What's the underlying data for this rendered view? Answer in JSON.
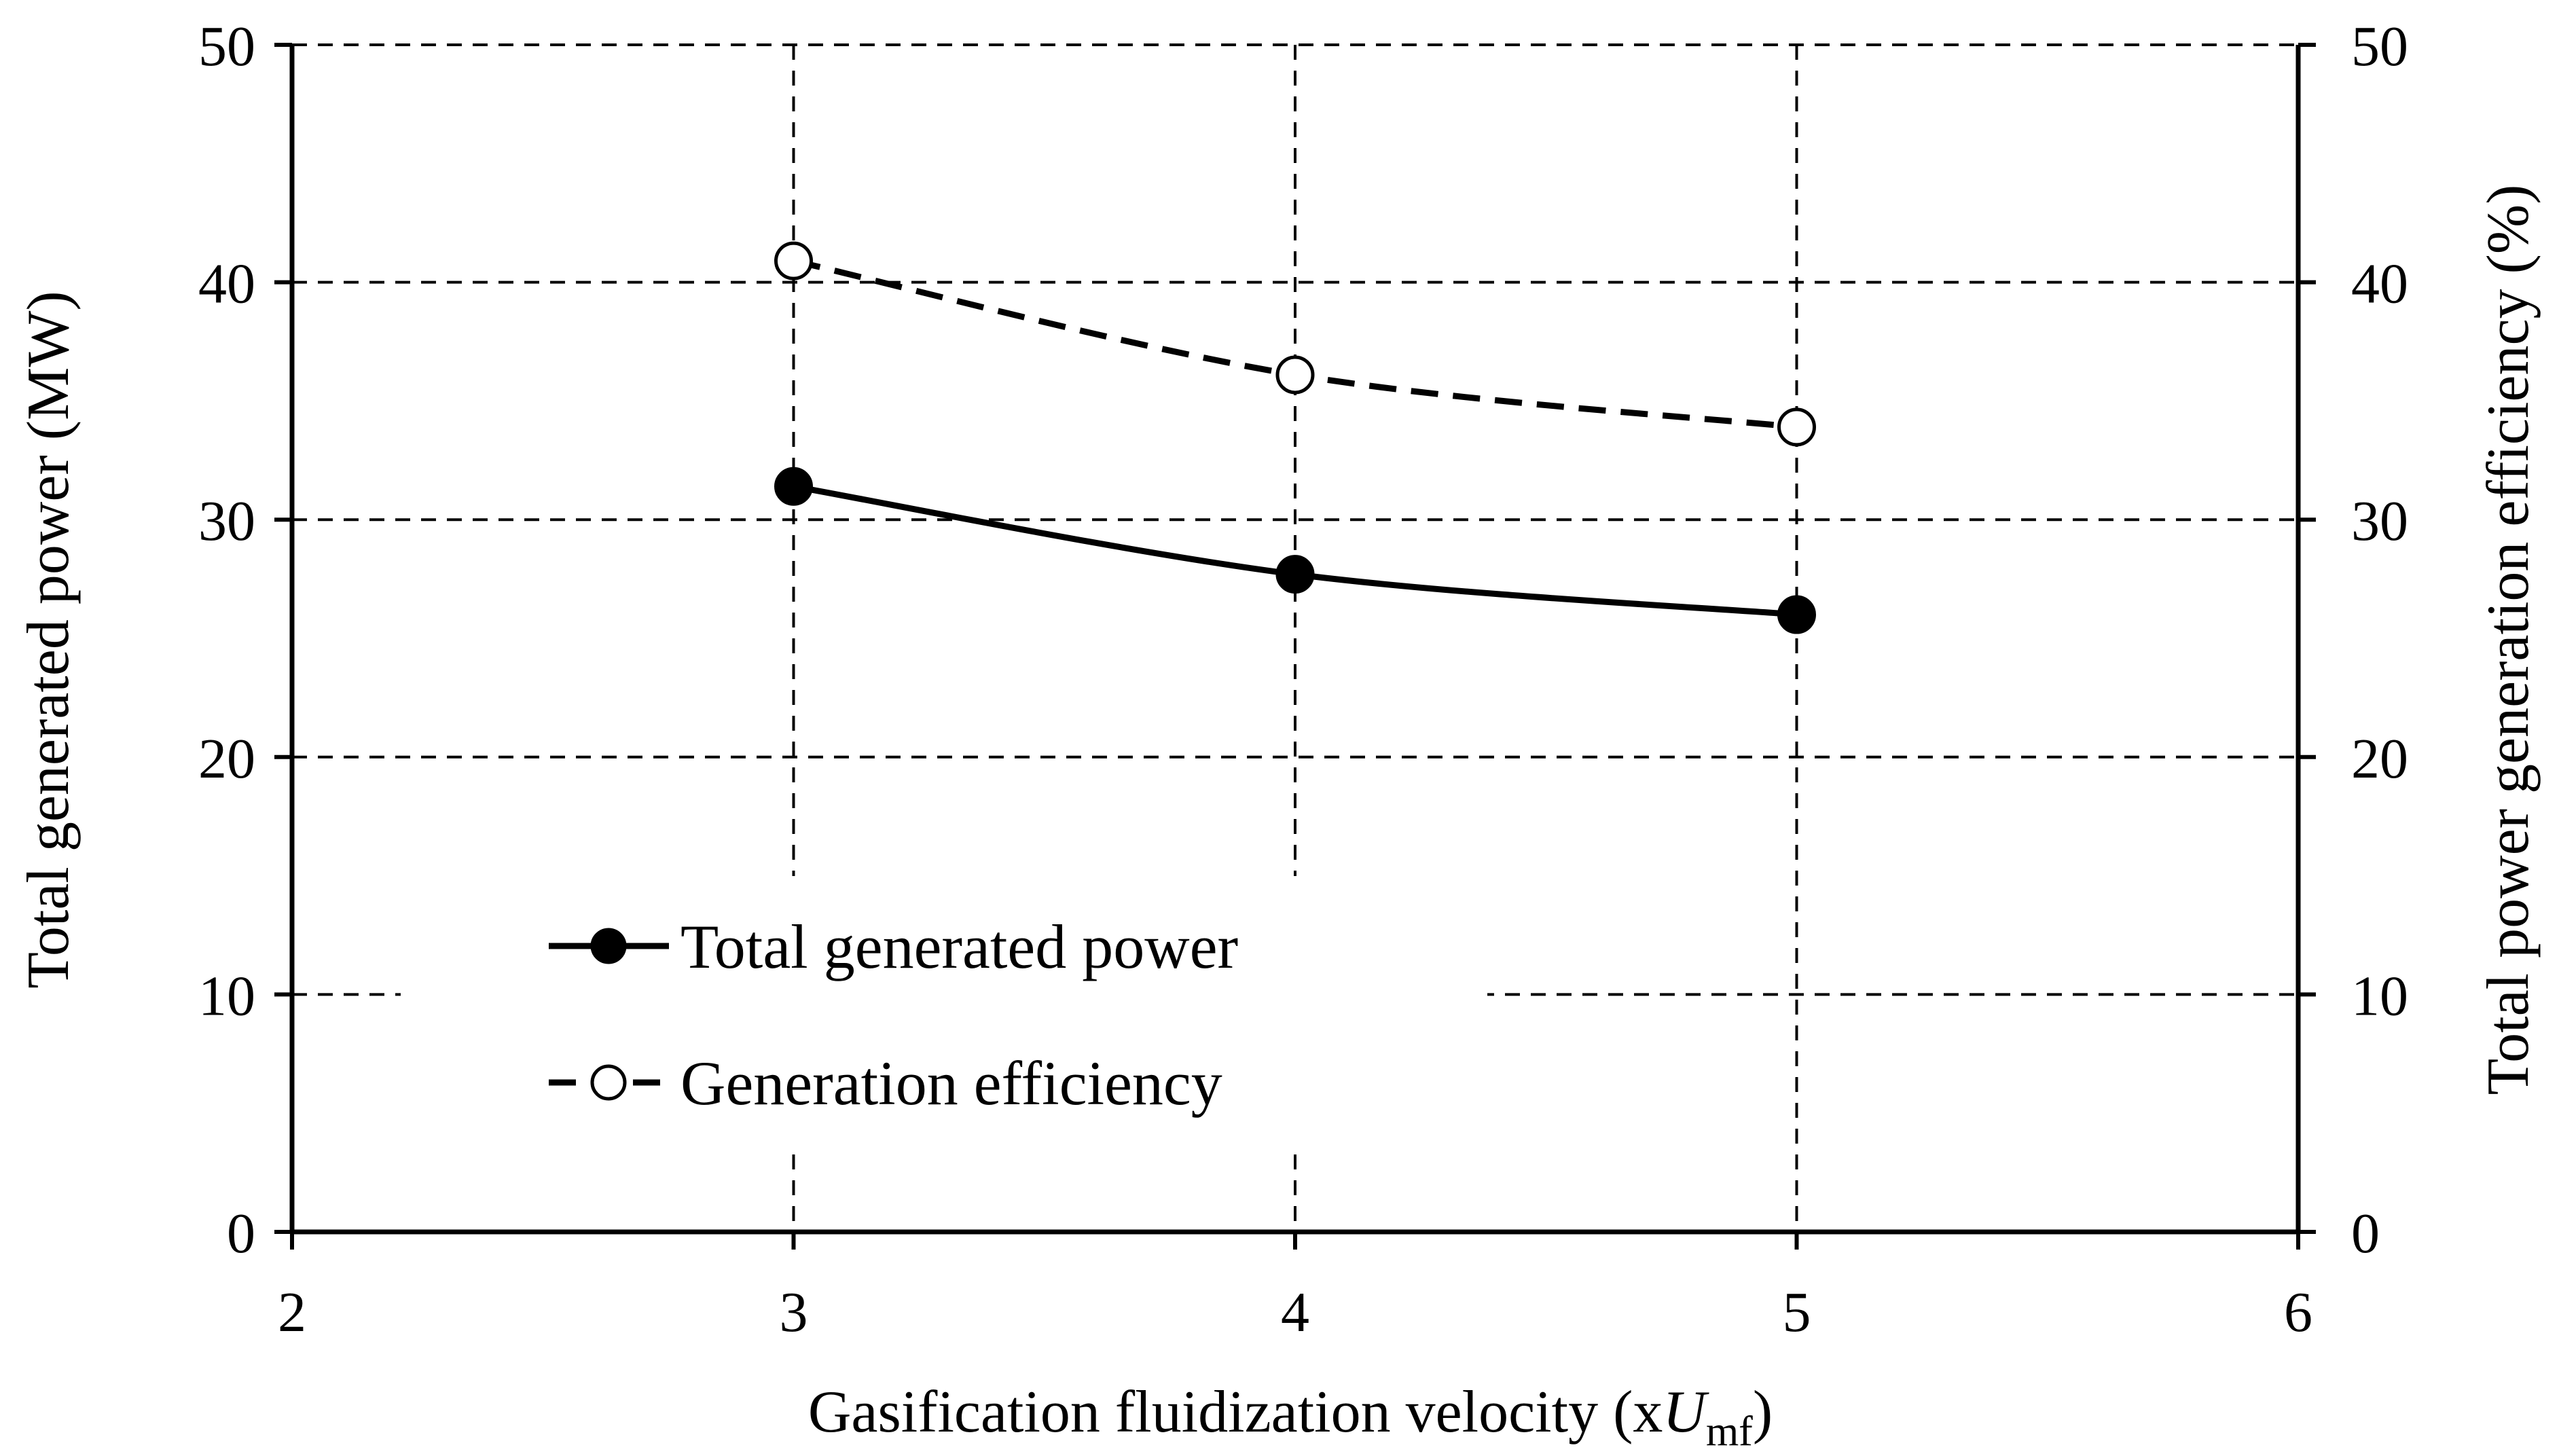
{
  "chart_data": {
    "type": "line",
    "title": "",
    "xlabel": "Gasification fluidization velocity (x",
    "xlabel_var": "U",
    "xlabel_sub": "mf",
    "xlabel_close": ")",
    "ylabel": "Total generated power (MW)",
    "y2label": "Total power generation efficiency (%)",
    "xlim": [
      2,
      6
    ],
    "ylim": [
      0,
      50
    ],
    "y2lim": [
      0,
      50
    ],
    "x_ticks": [
      "2",
      "3",
      "4",
      "5",
      "6"
    ],
    "y_ticks": [
      "0",
      "10",
      "20",
      "30",
      "40",
      "50"
    ],
    "y2_ticks": [
      "0",
      "10",
      "20",
      "30",
      "40",
      "50"
    ],
    "grid": true,
    "legend_position": "center-left",
    "series": [
      {
        "name": "Total generated power",
        "axis": "left",
        "line_style": "solid",
        "marker": "filled-circle",
        "x": [
          3,
          4,
          5
        ],
        "values": [
          31.4,
          27.7,
          26.0
        ]
      },
      {
        "name": "Generation efficiency",
        "axis": "right",
        "line_style": "dashed",
        "marker": "open-circle",
        "x": [
          3,
          4,
          5
        ],
        "values": [
          40.9,
          36.1,
          33.9
        ]
      }
    ]
  }
}
